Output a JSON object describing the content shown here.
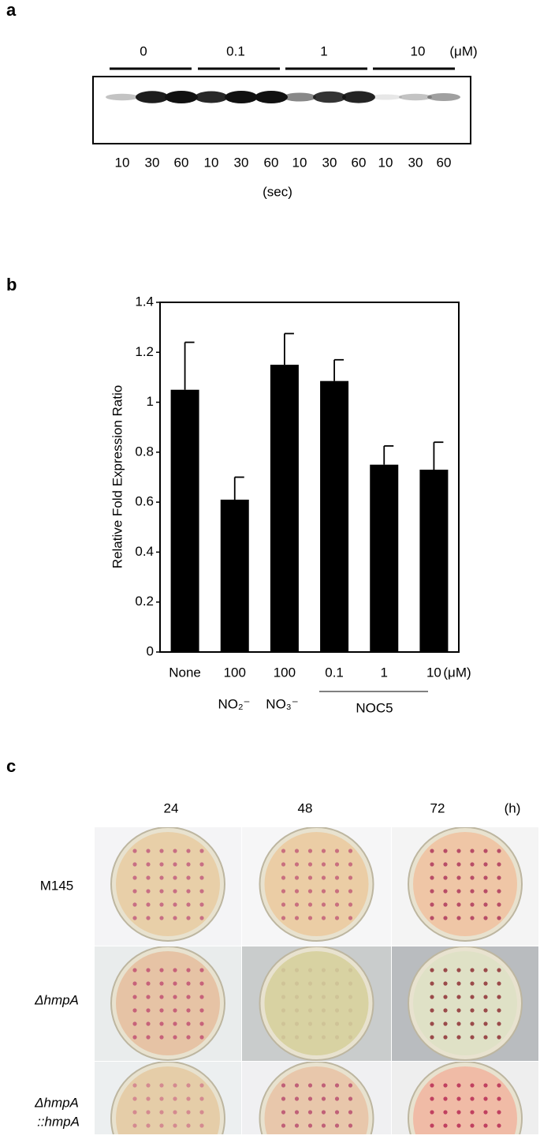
{
  "panel_a": {
    "label": "a",
    "concentrations": [
      "0",
      "0.1",
      "1",
      "10"
    ],
    "unit": "(μM)",
    "times": [
      "10",
      "30",
      "60",
      "10",
      "30",
      "60",
      "10",
      "30",
      "60",
      "10",
      "30",
      "60"
    ],
    "time_unit": "(sec)"
  },
  "chart_data": {
    "type": "bar",
    "panel_label": "b",
    "y_label": "Relative Fold Expression Ratio",
    "categories": [
      "None",
      "100",
      "100",
      "0.1",
      "1",
      "10"
    ],
    "unit": "(μM)",
    "group_labels": [
      "NO₂⁻",
      "NO₃⁻",
      "NOC5"
    ],
    "values": [
      1.05,
      0.61,
      1.15,
      1.085,
      0.75,
      0.73
    ],
    "errors": [
      0.19,
      0.09,
      0.125,
      0.085,
      0.075,
      0.11
    ],
    "color": "#000000",
    "ylim": [
      0,
      1.4
    ],
    "yticks": [
      0,
      0.2,
      0.4,
      0.6,
      0.8,
      1,
      1.2,
      1.4
    ],
    "grid": false
  },
  "panel_c": {
    "label": "c",
    "times": [
      "24",
      "48",
      "72"
    ],
    "time_unit": "(h)",
    "strains": [
      "M145",
      "ΔhmpA",
      "ΔhmpA",
      "::hmpA"
    ]
  }
}
